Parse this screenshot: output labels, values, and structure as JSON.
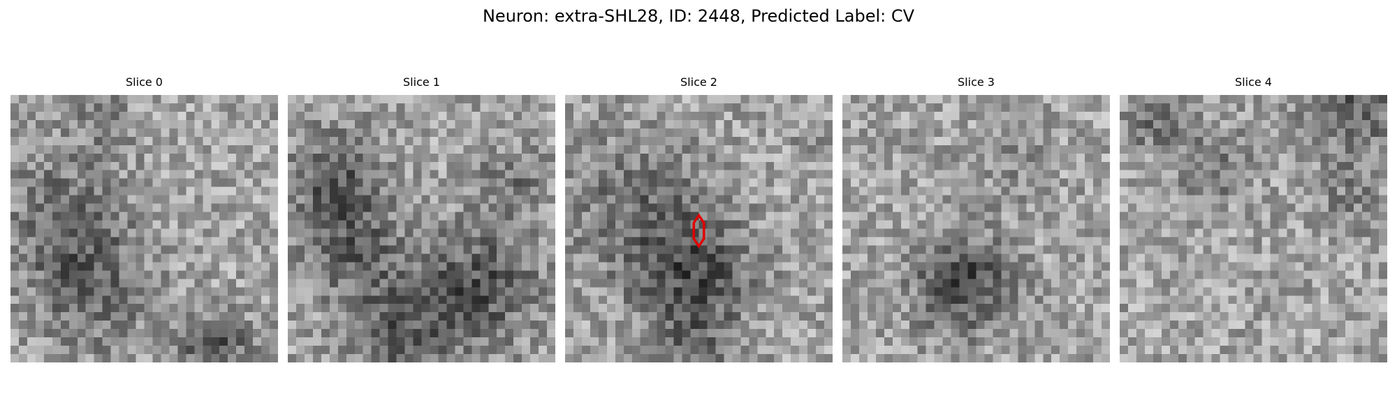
{
  "figure": {
    "title": "Neuron: extra-SHL28, ID: 2448, Predicted Label: CV"
  },
  "slices": [
    {
      "title": "Slice 0",
      "has_marker": false
    },
    {
      "title": "Slice 1",
      "has_marker": false
    },
    {
      "title": "Slice 2",
      "has_marker": true
    },
    {
      "title": "Slice 3",
      "has_marker": false
    },
    {
      "title": "Slice 4",
      "has_marker": false
    }
  ],
  "colors": {
    "marker": "#e00000",
    "background": "#ffffff"
  }
}
